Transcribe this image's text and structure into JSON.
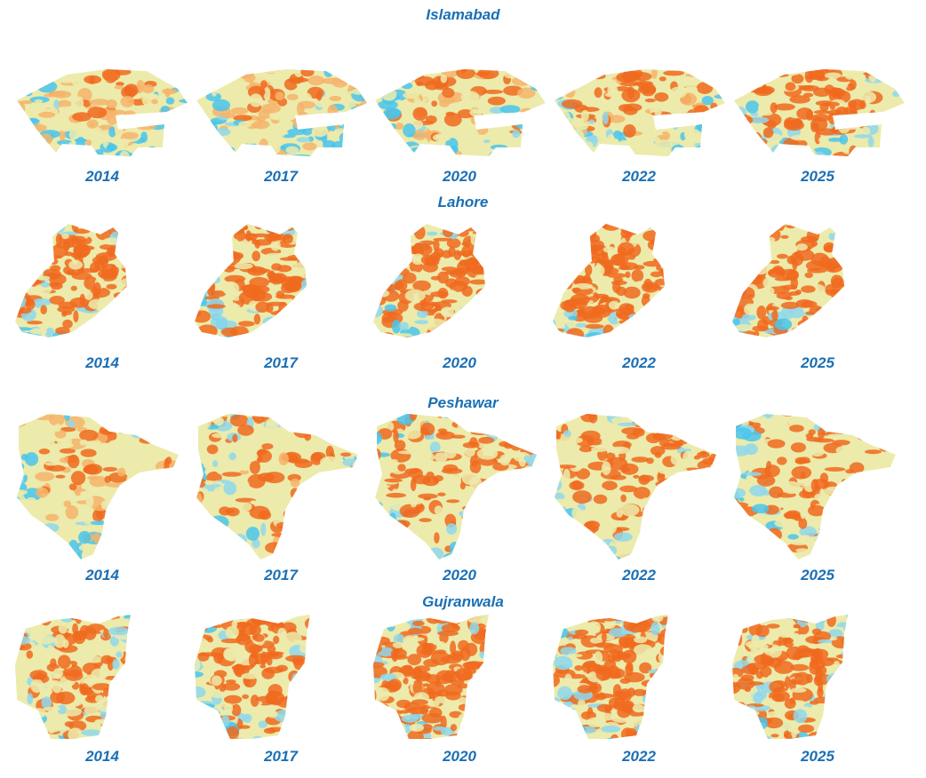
{
  "colors": {
    "label": "#1a6fb5",
    "cool": "#4ac6ec",
    "cool_light": "#8fd8ec",
    "neutral": "#ecebab",
    "warm": "#f6b46b",
    "hot": "#f06a1e"
  },
  "maps": [
    {
      "city": "Islamabad",
      "panels": [
        {
          "year": "2014",
          "hot_fraction": 0.1
        },
        {
          "year": "2017",
          "hot_fraction": 0.12
        },
        {
          "year": "2020",
          "hot_fraction": 0.18
        },
        {
          "year": "2022",
          "hot_fraction": 0.22
        },
        {
          "year": "2025",
          "hot_fraction": 0.32
        }
      ]
    },
    {
      "city": "Lahore",
      "panels": [
        {
          "year": "2014",
          "hot_fraction": 0.34
        },
        {
          "year": "2017",
          "hot_fraction": 0.36
        },
        {
          "year": "2020",
          "hot_fraction": 0.38
        },
        {
          "year": "2022",
          "hot_fraction": 0.4
        },
        {
          "year": "2025",
          "hot_fraction": 0.37
        }
      ]
    },
    {
      "city": "Peshawar",
      "panels": [
        {
          "year": "2014",
          "hot_fraction": 0.16
        },
        {
          "year": "2017",
          "hot_fraction": 0.26
        },
        {
          "year": "2020",
          "hot_fraction": 0.28
        },
        {
          "year": "2022",
          "hot_fraction": 0.3
        },
        {
          "year": "2025",
          "hot_fraction": 0.3
        }
      ]
    },
    {
      "city": "Gujranwala",
      "panels": [
        {
          "year": "2014",
          "hot_fraction": 0.3
        },
        {
          "year": "2017",
          "hot_fraction": 0.32
        },
        {
          "year": "2020",
          "hot_fraction": 0.38
        },
        {
          "year": "2022",
          "hot_fraction": 0.38
        },
        {
          "year": "2025",
          "hot_fraction": 0.34
        }
      ]
    }
  ]
}
